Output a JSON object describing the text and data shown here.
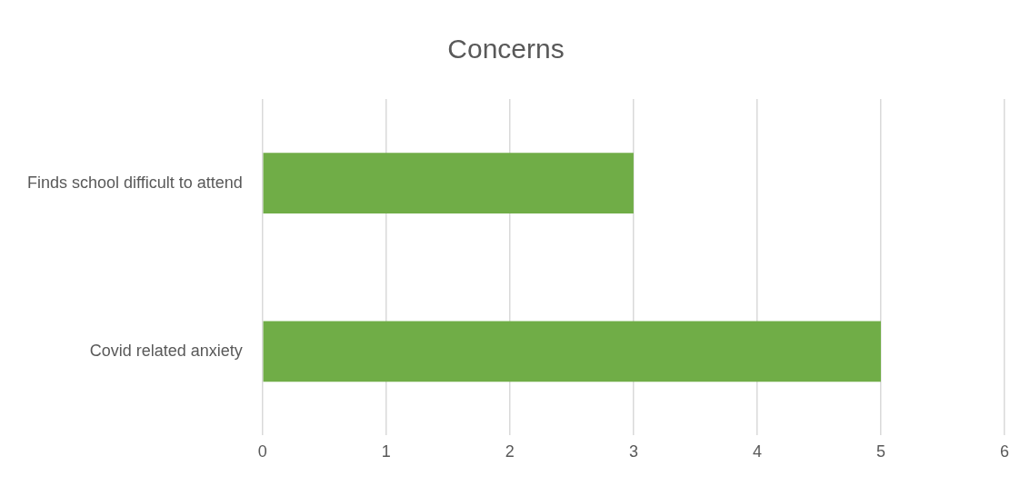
{
  "chart_data": {
    "type": "bar",
    "orientation": "horizontal",
    "title": "Concerns",
    "categories": [
      "Finds school difficult to attend",
      "Covid related anxiety"
    ],
    "values": [
      3,
      5
    ],
    "color": "#70ad47",
    "xlim": [
      0,
      6
    ],
    "xticks": [
      0,
      1,
      2,
      3,
      4,
      5,
      6
    ],
    "grid": "x",
    "legend": false
  }
}
